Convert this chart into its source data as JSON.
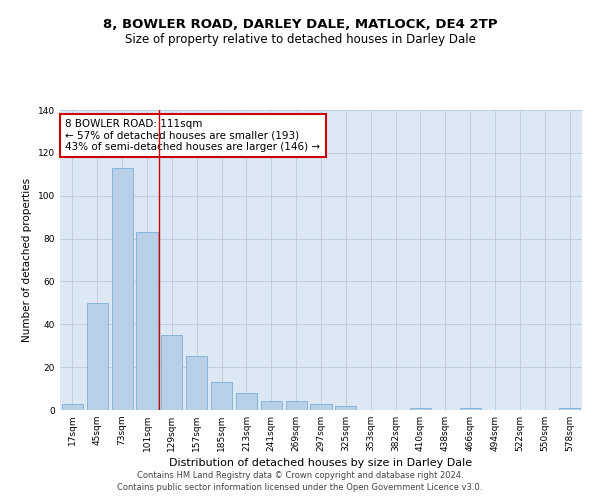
{
  "title": "8, BOWLER ROAD, DARLEY DALE, MATLOCK, DE4 2TP",
  "subtitle": "Size of property relative to detached houses in Darley Dale",
  "xlabel": "Distribution of detached houses by size in Darley Dale",
  "ylabel": "Number of detached properties",
  "categories": [
    "17sqm",
    "45sqm",
    "73sqm",
    "101sqm",
    "129sqm",
    "157sqm",
    "185sqm",
    "213sqm",
    "241sqm",
    "269sqm",
    "297sqm",
    "325sqm",
    "353sqm",
    "382sqm",
    "410sqm",
    "438sqm",
    "466sqm",
    "494sqm",
    "522sqm",
    "550sqm",
    "578sqm"
  ],
  "values": [
    3,
    50,
    113,
    83,
    35,
    25,
    13,
    8,
    4,
    4,
    3,
    2,
    0,
    0,
    1,
    0,
    1,
    0,
    0,
    0,
    1
  ],
  "bar_color": "#b8cfe8",
  "bar_edge_color": "#7aafd4",
  "vline_x": 3.5,
  "vline_color": "#cc0000",
  "annotation_text": "8 BOWLER ROAD: 111sqm\n← 57% of detached houses are smaller (193)\n43% of semi-detached houses are larger (146) →",
  "annotation_box_color": "#ffffff",
  "annotation_box_edge_color": "#cc0000",
  "ylim": [
    0,
    140
  ],
  "yticks": [
    0,
    20,
    40,
    60,
    80,
    100,
    120,
    140
  ],
  "background_color": "#ffffff",
  "plot_bg_color": "#dde8f5",
  "grid_color": "#c0cfe0",
  "footnote": "Contains HM Land Registry data © Crown copyright and database right 2024.\nContains public sector information licensed under the Open Government Licence v3.0.",
  "title_fontsize": 9.5,
  "subtitle_fontsize": 8.5,
  "xlabel_fontsize": 8,
  "ylabel_fontsize": 7.5,
  "tick_fontsize": 6.5,
  "annotation_fontsize": 7.5,
  "footnote_fontsize": 6
}
